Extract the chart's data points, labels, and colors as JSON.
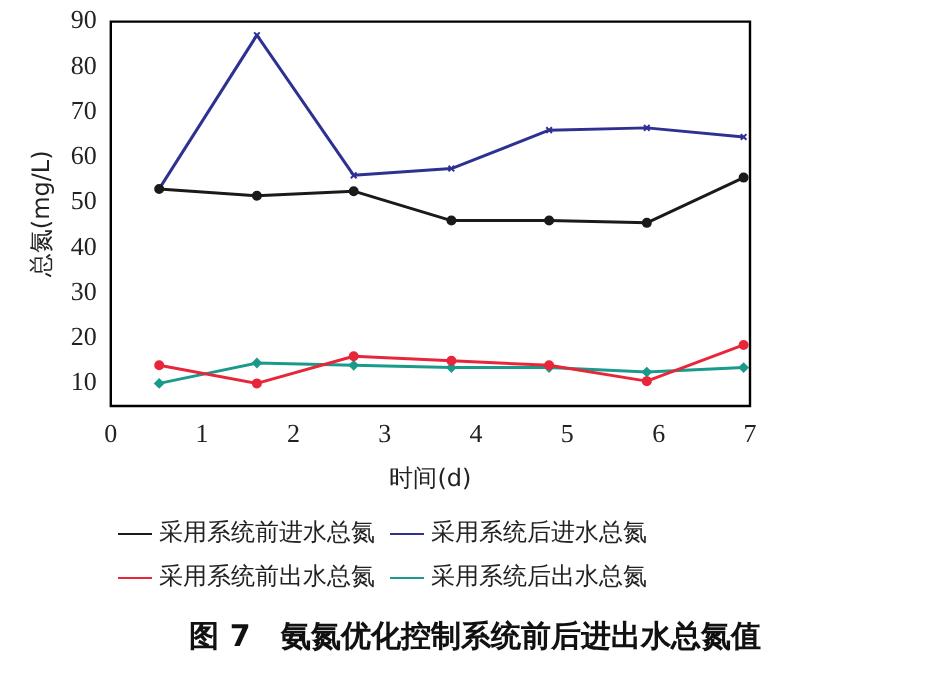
{
  "chart_data": {
    "type": "line",
    "title": "图 7　氨氮优化控制系统前后进出水总氮值",
    "xlabel": "时间(d)",
    "ylabel": "总氮(mg/L)",
    "x": [
      0.53,
      1.6,
      2.66,
      3.73,
      4.8,
      5.87,
      6.93
    ],
    "series": [
      {
        "name": "采用系统前进水总氮",
        "color": "#1a1a1a",
        "marker": "circle",
        "values": [
          53,
          51.5,
          52.5,
          46,
          46,
          45.5,
          55.5
        ]
      },
      {
        "name": "采用系统后进水总氮",
        "color": "#2e3192",
        "marker": "cross",
        "values": [
          53,
          87,
          56,
          57.5,
          66,
          66.5,
          64.5
        ]
      },
      {
        "name": "采用系统前出水总氮",
        "color": "#e8263a",
        "marker": "circle",
        "values": [
          14,
          10,
          16,
          15,
          14,
          10.5,
          18.5
        ]
      },
      {
        "name": "采用系统后出水总氮",
        "color": "#1a9a8a",
        "marker": "diamond",
        "values": [
          10,
          14.5,
          14,
          13.5,
          13.5,
          12.5,
          13.5
        ]
      }
    ],
    "xlim": [
      0,
      7
    ],
    "xticks": [
      0,
      1,
      2,
      3,
      4,
      5,
      6,
      7
    ],
    "ylim": [
      5,
      90
    ],
    "yticks": [
      10,
      20,
      30,
      40,
      50,
      60,
      70,
      80,
      90
    ],
    "grid": false,
    "legend": "bottom",
    "line_style": "solid"
  }
}
